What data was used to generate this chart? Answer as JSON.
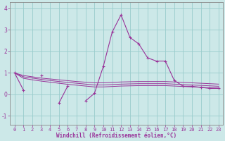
{
  "xlabel": "Windchill (Refroidissement éolien,°C)",
  "bg_color": "#cce8e8",
  "line_color": "#993399",
  "grid_color": "#99cccc",
  "x_hours": [
    0,
    1,
    2,
    3,
    4,
    5,
    6,
    7,
    8,
    9,
    10,
    11,
    12,
    13,
    14,
    15,
    16,
    17,
    18,
    19,
    20,
    21,
    22,
    23
  ],
  "series1": [
    1.0,
    0.2,
    null,
    0.9,
    null,
    -0.4,
    0.4,
    null,
    -0.3,
    0.05,
    1.3,
    2.9,
    3.7,
    2.65,
    2.35,
    1.7,
    1.55,
    1.55,
    0.65,
    0.38,
    0.38,
    0.33,
    0.28,
    0.28
  ],
  "series2": [
    1.0,
    0.88,
    0.82,
    0.76,
    0.72,
    0.68,
    0.64,
    0.6,
    0.57,
    0.54,
    0.54,
    0.56,
    0.58,
    0.59,
    0.6,
    0.6,
    0.6,
    0.6,
    0.58,
    0.56,
    0.54,
    0.52,
    0.5,
    0.48
  ],
  "series3": [
    1.0,
    0.82,
    0.76,
    0.7,
    0.65,
    0.6,
    0.56,
    0.52,
    0.48,
    0.44,
    0.44,
    0.46,
    0.48,
    0.49,
    0.5,
    0.5,
    0.5,
    0.5,
    0.48,
    0.46,
    0.44,
    0.42,
    0.4,
    0.38
  ],
  "series4": [
    1.0,
    0.75,
    0.68,
    0.62,
    0.57,
    0.52,
    0.47,
    0.43,
    0.39,
    0.35,
    0.35,
    0.37,
    0.39,
    0.4,
    0.41,
    0.41,
    0.41,
    0.41,
    0.39,
    0.37,
    0.35,
    0.33,
    0.31,
    0.3
  ],
  "ylim": [
    -1.4,
    4.3
  ],
  "yticks": [
    -1,
    0,
    1,
    2,
    3,
    4
  ],
  "xlim": [
    -0.5,
    23.5
  ],
  "tick_fontsize": 5.0,
  "label_fontsize": 5.5
}
